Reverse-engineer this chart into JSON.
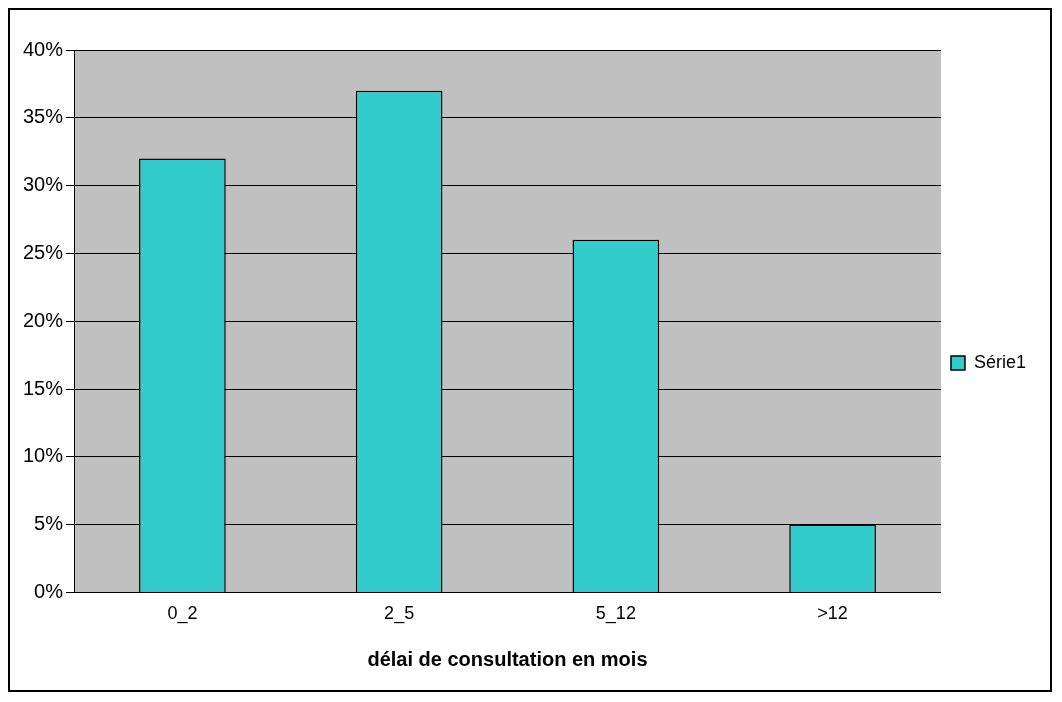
{
  "chart_data": {
    "type": "bar",
    "xlabel": "délai de consultation en mois",
    "categories": [
      "0_2",
      "2_5",
      "5_12",
      ">12"
    ],
    "series": [
      {
        "name": "Série1",
        "color": "#33cccc",
        "values": [
          32,
          37,
          26,
          5
        ]
      }
    ],
    "ylim": [
      0,
      40
    ],
    "yticks": [
      {
        "value": 0,
        "label": "0%"
      },
      {
        "value": 5,
        "label": "5%"
      },
      {
        "value": 10,
        "label": "10%"
      },
      {
        "value": 15,
        "label": "15%"
      },
      {
        "value": 20,
        "label": "20%"
      },
      {
        "value": 25,
        "label": "25%"
      },
      {
        "value": 30,
        "label": "30%"
      },
      {
        "value": 35,
        "label": "35%"
      },
      {
        "value": 40,
        "label": "40%"
      }
    ],
    "grid": "y",
    "legend": "right"
  }
}
